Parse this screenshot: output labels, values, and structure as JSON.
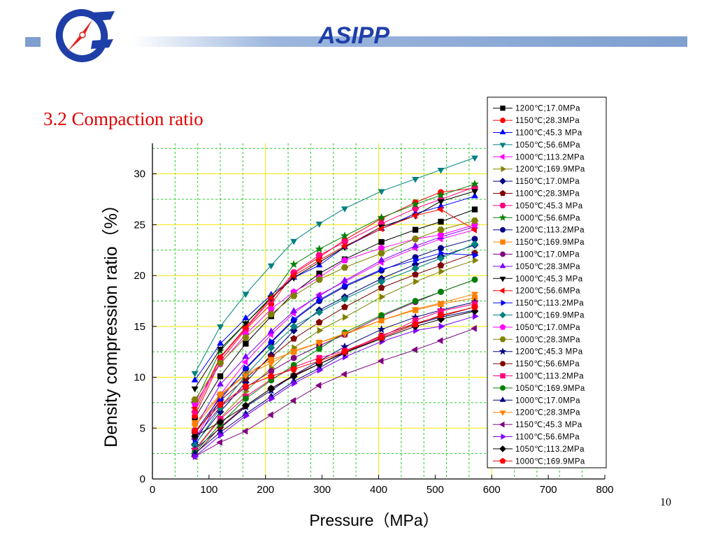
{
  "header": {
    "brand": "ASIPP",
    "logo_icon": "asipp-logo-icon",
    "accent_color": "#1f3fa8",
    "bar_color": "#7f9fcf"
  },
  "slide": {
    "heading": "3.2 Compaction ratio",
    "heading_color": "#e00000",
    "page_number": "10"
  },
  "chart_data": {
    "type": "line",
    "xlabel": "Pressure（MPa）",
    "ylabel": "Density compression ratio（%）",
    "xlim": [
      0,
      800
    ],
    "ylim": [
      0,
      33
    ],
    "x_ticks": [
      "0",
      "100",
      "200",
      "300",
      "400",
      "500",
      "600",
      "700",
      "800"
    ],
    "y_ticks": [
      "0",
      "5",
      "10",
      "15",
      "20",
      "25",
      "30"
    ],
    "grid": true,
    "grid_color": "#22cc22",
    "highlight_gridline_color": "#f5e600",
    "legend_position": "top-right (outside plot)",
    "x": [
      75,
      120,
      165,
      210,
      250,
      295,
      340,
      405,
      465,
      510,
      570
    ],
    "series": [
      {
        "name": "1200℃;17.0MPa",
        "marker": "square",
        "color": "#000000",
        "values": [
          6.0,
          10.1,
          13.3,
          16.0,
          18.3,
          20.2,
          21.6,
          23.3,
          24.5,
          25.3,
          26.5
        ]
      },
      {
        "name": "1150℃;28.3MPa",
        "marker": "circle",
        "color": "#ff0000",
        "values": [
          6.2,
          11.6,
          14.7,
          17.2,
          20.2,
          21.8,
          23.5,
          25.6,
          27.2,
          28.2,
          28.6
        ]
      },
      {
        "name": "1100℃;45.3 MPa",
        "marker": "triangle-up",
        "color": "#0000ff",
        "values": [
          9.7,
          13.3,
          15.8,
          18.1,
          19.8,
          21.0,
          22.8,
          24.6,
          26.1,
          26.8,
          27.8
        ]
      },
      {
        "name": "1050℃;56.6MPa",
        "marker": "triangle-down",
        "color": "#008080",
        "values": [
          10.4,
          15.0,
          18.2,
          21.0,
          23.4,
          25.1,
          26.6,
          28.3,
          29.5,
          30.4,
          31.6
        ]
      },
      {
        "name": "1000℃;113.2MPa",
        "marker": "triangle-left",
        "color": "#ff00ff",
        "values": [
          3.9,
          8.3,
          11.5,
          14.2,
          16.3,
          18.1,
          19.4,
          21.3,
          22.7,
          23.6,
          24.5
        ]
      },
      {
        "name": "1200℃;169.9MPa",
        "marker": "triangle-right",
        "color": "#808000",
        "values": [
          2.9,
          6.0,
          8.6,
          10.9,
          12.9,
          14.6,
          15.9,
          17.9,
          19.4,
          20.4,
          21.5
        ]
      },
      {
        "name": "1150℃;17.0MPa",
        "marker": "diamond",
        "color": "#000080",
        "values": [
          3.4,
          6.6,
          9.5,
          12.2,
          14.6,
          16.6,
          17.9,
          19.7,
          21.1,
          21.9,
          23.0
        ]
      },
      {
        "name": "1100℃;28.3MPa",
        "marker": "pentagon",
        "color": "#800000",
        "values": [
          4.5,
          7.7,
          9.9,
          12.0,
          13.8,
          15.4,
          16.9,
          18.8,
          20.1,
          21.0,
          22.2
        ]
      },
      {
        "name": "1050℃;45.3 MPa",
        "marker": "hexagon",
        "color": "#ff0080",
        "values": [
          6.6,
          11.9,
          14.8,
          17.6,
          20.3,
          22.0,
          23.3,
          25.1,
          26.6,
          27.5,
          28.7
        ]
      },
      {
        "name": "1000℃;56.6MPa",
        "marker": "star",
        "color": "#008000",
        "values": [
          7.5,
          12.6,
          15.3,
          17.9,
          21.1,
          22.6,
          23.9,
          25.7,
          27.0,
          27.9,
          29.0
        ]
      },
      {
        "name": "1200℃;113.2MPa",
        "marker": "circle",
        "color": "#000080",
        "values": [
          4.6,
          8.0,
          10.8,
          13.4,
          15.6,
          17.5,
          18.9,
          20.5,
          21.8,
          22.7,
          23.6
        ]
      },
      {
        "name": "1150℃;169.9MPa",
        "marker": "square",
        "color": "#ff8000",
        "values": [
          5.5,
          8.3,
          10.3,
          11.7,
          12.5,
          13.4,
          14.2,
          15.6,
          16.6,
          17.2,
          17.8
        ]
      },
      {
        "name": "1100℃;17.0MPa",
        "marker": "circle",
        "color": "#800080",
        "values": [
          4.0,
          7.1,
          9.0,
          10.6,
          11.9,
          13.1,
          14.2,
          16.0,
          17.4,
          18.4,
          19.6
        ]
      },
      {
        "name": "1050℃;28.3MPa",
        "marker": "triangle-up",
        "color": "#8000ff",
        "values": [
          5.0,
          9.3,
          12.0,
          14.5,
          16.5,
          18.0,
          19.5,
          21.5,
          22.9,
          23.8,
          24.8
        ]
      },
      {
        "name": "1000℃;45.3 MPa",
        "marker": "triangle-down",
        "color": "#000000",
        "values": [
          8.9,
          12.8,
          15.3,
          17.8,
          19.8,
          21.3,
          22.8,
          24.8,
          25.9,
          27.3,
          28.3
        ]
      },
      {
        "name": "1200℃;56.6MPa",
        "marker": "triangle-left",
        "color": "#ff0000",
        "values": [
          7.0,
          12.0,
          14.9,
          17.8,
          20.0,
          21.5,
          22.9,
          24.6,
          25.9,
          26.5,
          24.5
        ]
      },
      {
        "name": "1150℃;113.2MPa",
        "marker": "triangle-right",
        "color": "#0000ff",
        "values": [
          3.6,
          7.8,
          10.9,
          13.5,
          15.7,
          17.6,
          19.0,
          20.6,
          21.5,
          22.2,
          22.0
        ]
      },
      {
        "name": "1100℃;169.9MPa",
        "marker": "diamond",
        "color": "#008080",
        "values": [
          3.3,
          7.0,
          10.2,
          12.9,
          15.0,
          16.4,
          17.7,
          19.4,
          20.7,
          21.7,
          23.1
        ]
      },
      {
        "name": "1050℃;17.0MPa",
        "marker": "pentagon",
        "color": "#ff00ff",
        "values": [
          7.4,
          11.3,
          14.2,
          16.7,
          18.4,
          19.8,
          21.5,
          22.7,
          23.6,
          24.0,
          25.0
        ]
      },
      {
        "name": "1000℃;28.3MPa",
        "marker": "hexagon",
        "color": "#808000",
        "values": [
          7.8,
          11.4,
          13.9,
          16.2,
          18.0,
          19.6,
          20.8,
          22.2,
          23.6,
          24.5,
          25.4
        ]
      },
      {
        "name": "1200℃;45.3 MPa",
        "marker": "star",
        "color": "#000080",
        "values": [
          2.9,
          5.0,
          7.1,
          8.7,
          10.2,
          11.6,
          13.0,
          14.7,
          15.9,
          16.6,
          17.4
        ]
      },
      {
        "name": "1150℃;56.6MPa",
        "marker": "circle",
        "color": "#800000",
        "values": [
          2.4,
          5.1,
          7.2,
          8.9,
          10.2,
          11.3,
          12.5,
          14.1,
          15.3,
          16.0,
          16.9
        ]
      },
      {
        "name": "1100℃;113.2MPa",
        "marker": "square",
        "color": "#ff0080",
        "values": [
          2.8,
          5.9,
          8.1,
          9.8,
          11.0,
          11.9,
          12.6,
          14.0,
          15.6,
          16.5,
          17.2
        ]
      },
      {
        "name": "1050℃;169.9MPa",
        "marker": "circle",
        "color": "#008000",
        "values": [
          2.6,
          5.4,
          7.9,
          9.7,
          11.2,
          12.8,
          14.4,
          16.1,
          17.5,
          18.4,
          19.6
        ]
      },
      {
        "name": "1000℃;17.0MPa",
        "marker": "triangle-up",
        "color": "#000080",
        "values": [
          2.5,
          4.6,
          6.4,
          8.1,
          9.6,
          10.9,
          12.4,
          13.9,
          15.2,
          15.9,
          16.6
        ]
      },
      {
        "name": "1200℃;28.3MPa",
        "marker": "triangle-down",
        "color": "#ff8000",
        "values": [
          5.2,
          8.2,
          10.2,
          11.4,
          12.6,
          13.4,
          14.3,
          15.6,
          16.7,
          17.3,
          18.2
        ]
      },
      {
        "name": "1150℃;45.3 MPa",
        "marker": "triangle-left",
        "color": "#800080",
        "values": [
          2.2,
          3.6,
          4.7,
          6.3,
          7.7,
          9.2,
          10.3,
          11.6,
          12.7,
          13.6,
          14.8
        ]
      },
      {
        "name": "1100℃;56.6MPa",
        "marker": "triangle-right",
        "color": "#8000ff",
        "values": [
          2.2,
          4.3,
          6.2,
          7.9,
          9.4,
          10.7,
          12.0,
          13.5,
          14.6,
          15.0,
          16.0
        ]
      },
      {
        "name": "1050℃;113.2MPa",
        "marker": "diamond",
        "color": "#000000",
        "values": [
          4.2,
          5.6,
          7.2,
          8.9,
          10.1,
          11.3,
          12.4,
          13.8,
          15.0,
          15.7,
          16.5
        ]
      },
      {
        "name": "1000℃;169.9MPa",
        "marker": "pentagon",
        "color": "#ff0000",
        "values": [
          4.7,
          7.3,
          9.1,
          10.1,
          10.8,
          11.6,
          12.5,
          13.9,
          15.2,
          16.1,
          16.9
        ]
      }
    ]
  }
}
